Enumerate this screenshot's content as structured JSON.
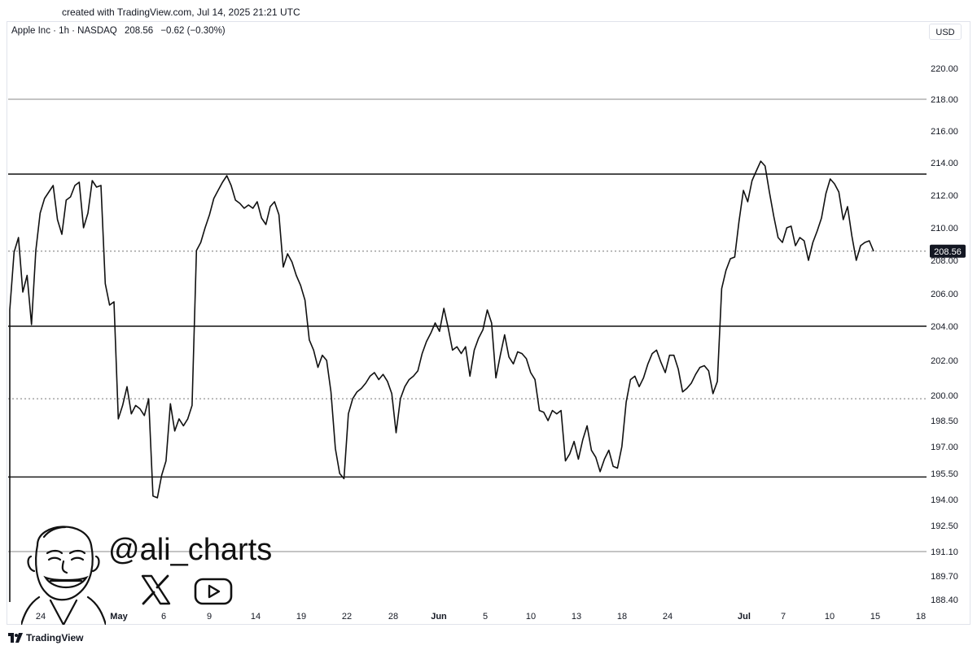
{
  "header": {
    "created_text": "created with TradingView.com, Jul 14, 2025 21:21 UTC",
    "symbol": "Apple Inc · 1h · NASDAQ",
    "last_price": "208.56",
    "change": "−0.62 (−0.30%)",
    "currency": "USD"
  },
  "branding": {
    "handle": "@ali_charts",
    "footer_logo": "TradingView",
    "x_icon": "x-logo-icon",
    "youtube_icon": "youtube-play-icon",
    "avatar": "cartoon-face-avatar"
  },
  "chart_data": {
    "type": "line",
    "series": [
      {
        "values": [
          205,
          208.5,
          209.4,
          206.1,
          207.1,
          204.1,
          208.6,
          210.9,
          211.8,
          212.2,
          212.6,
          210.5,
          209.6,
          211.7,
          211.9,
          212.6,
          212.8,
          210.0,
          210.9,
          212.9,
          212.5,
          212.6,
          206.6,
          205.3,
          205.5,
          198.6,
          199.4,
          200.5,
          198.9,
          199.4,
          199.2,
          198.8,
          199.8,
          194.2,
          194.1,
          195.4,
          196.2,
          199.5,
          197.9,
          198.6,
          198.2,
          198.6,
          199.4,
          208.6,
          209.1,
          210.0,
          210.8,
          211.8,
          212.3,
          212.8,
          213.2,
          212.6,
          211.7,
          211.5,
          211.2,
          211.4,
          211.2,
          211.6,
          210.6,
          210.2,
          211.3,
          211.6,
          210.8,
          207.6,
          208.4,
          207.9,
          207.1,
          206.5,
          205.6,
          203.2,
          202.6,
          201.6,
          202.3,
          202.0,
          200.2,
          196.9,
          195.5,
          195.2,
          198.9,
          199.8,
          200.2,
          200.4,
          200.7,
          201.1,
          201.3,
          200.9,
          201.2,
          200.8,
          200.1,
          197.8,
          199.8,
          200.5,
          200.9,
          201.1,
          201.4,
          202.4,
          203.1,
          203.6,
          204.2,
          203.7,
          205.1,
          203.9,
          202.6,
          202.8,
          202.4,
          202.8,
          201.1,
          202.6,
          203.3,
          203.8,
          205.0,
          204.2,
          201.0,
          202.3,
          203.5,
          202.2,
          201.8,
          202.5,
          202.4,
          202.1,
          201.3,
          200.9,
          199.1,
          199.0,
          198.5,
          199.1,
          198.9,
          199.1,
          196.2,
          196.6,
          197.3,
          196.3,
          197.4,
          198.2,
          196.8,
          196.4,
          195.6,
          196.3,
          196.8,
          195.9,
          195.8,
          197.0,
          199.6,
          200.9,
          201.1,
          200.5,
          201.0,
          201.8,
          202.4,
          202.6,
          201.9,
          201.3,
          202.3,
          202.3,
          201.5,
          200.2,
          200.4,
          200.7,
          201.2,
          201.6,
          201.7,
          201.4,
          200.1,
          200.8,
          206.3,
          207.4,
          208.1,
          208.2,
          210.4,
          212.3,
          211.6,
          212.9,
          213.5,
          214.1,
          213.8,
          212.2,
          210.7,
          209.4,
          209.1,
          210.0,
          210.1,
          208.9,
          209.4,
          209.2,
          208.0,
          209.1,
          209.8,
          210.6,
          212.1,
          213.0,
          212.7,
          212.2,
          210.5,
          211.3,
          209.5,
          208.0,
          208.9,
          209.1,
          209.2,
          208.56
        ],
        "last": 208.56
      }
    ],
    "x_ticks": [
      "24",
      "May",
      "6",
      "9",
      "14",
      "19",
      "22",
      "28",
      "Jun",
      "5",
      "10",
      "13",
      "18",
      "24",
      "Jul",
      "7",
      "10",
      "15",
      "18"
    ],
    "y_ticks": [
      "220.00",
      "218.00",
      "216.00",
      "214.00",
      "212.00",
      "210.00",
      "208.00",
      "206.00",
      "204.00",
      "202.00",
      "200.00",
      "198.50",
      "197.00",
      "195.50",
      "194.00",
      "192.50",
      "191.10",
      "189.70",
      "188.40"
    ],
    "horizontal_lines_solid_dark": [
      213.3,
      204.0,
      195.3
    ],
    "horizontal_lines_solid_gray": [
      218.0,
      191.1
    ],
    "horizontal_lines_dotted": [
      208.56,
      199.8
    ],
    "price_label": "208.56",
    "ylim": [
      188.0,
      221.0
    ],
    "grid": false
  }
}
